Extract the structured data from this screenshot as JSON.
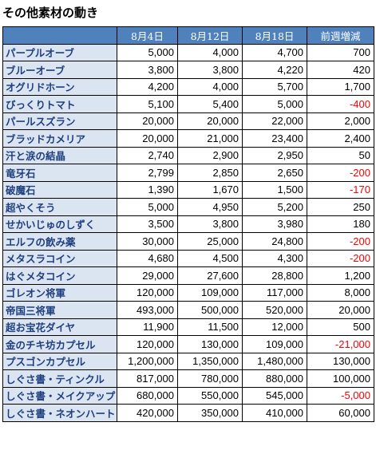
{
  "title": "その他素材の動き",
  "colors": {
    "header_bg": "#4f81bd",
    "name_bg": "#dbe5f1",
    "name_text": "#1f3f7f",
    "negative": "#ff0000"
  },
  "headers": [
    "",
    "8月4日",
    "8月12日",
    "8月18日",
    "前週増減"
  ],
  "rows": [
    {
      "name": "パープルオーブ",
      "v1": "5,000",
      "v2": "4,000",
      "v3": "4,700",
      "diff": "700",
      "neg": false
    },
    {
      "name": "ブルーオーブ",
      "v1": "3,800",
      "v2": "3,800",
      "v3": "4,220",
      "diff": "420",
      "neg": false
    },
    {
      "name": "オグリドホーン",
      "v1": "4,200",
      "v2": "4,000",
      "v3": "5,700",
      "diff": "1,700",
      "neg": false
    },
    {
      "name": "びっくりトマト",
      "v1": "5,100",
      "v2": "5,400",
      "v3": "5,000",
      "diff": "-400",
      "neg": true
    },
    {
      "name": "パールスズラン",
      "v1": "20,000",
      "v2": "20,000",
      "v3": "22,000",
      "diff": "2,000",
      "neg": false
    },
    {
      "name": "ブラッドカメリア",
      "v1": "20,000",
      "v2": "21,000",
      "v3": "23,400",
      "diff": "2,400",
      "neg": false
    },
    {
      "name": "汗と涙の結晶",
      "v1": "2,740",
      "v2": "2,900",
      "v3": "2,950",
      "diff": "50",
      "neg": false
    },
    {
      "name": "竜牙石",
      "v1": "2,799",
      "v2": "2,850",
      "v3": "2,650",
      "diff": "-200",
      "neg": true
    },
    {
      "name": "破魔石",
      "v1": "1,390",
      "v2": "1,670",
      "v3": "1,500",
      "diff": "-170",
      "neg": true
    },
    {
      "name": "超やくそう",
      "v1": "5,000",
      "v2": "4,950",
      "v3": "5,200",
      "diff": "250",
      "neg": false
    },
    {
      "name": "せかいじゅのしずく",
      "v1": "3,500",
      "v2": "3,800",
      "v3": "3,980",
      "diff": "180",
      "neg": false
    },
    {
      "name": "エルフの飲み薬",
      "v1": "30,000",
      "v2": "25,000",
      "v3": "24,800",
      "diff": "-200",
      "neg": true
    },
    {
      "name": "メタスラコイン",
      "v1": "4,680",
      "v2": "4,500",
      "v3": "4,300",
      "diff": "-200",
      "neg": true
    },
    {
      "name": "はぐメタコイン",
      "v1": "29,000",
      "v2": "27,600",
      "v3": "28,800",
      "diff": "1,200",
      "neg": false
    },
    {
      "name": "ゴレオン将軍",
      "v1": "120,000",
      "v2": "109,000",
      "v3": "117,000",
      "diff": "8,000",
      "neg": false
    },
    {
      "name": "帝国三将軍",
      "v1": "493,000",
      "v2": "500,000",
      "v3": "520,000",
      "diff": "20,000",
      "neg": false
    },
    {
      "name": "超お宝花ダイヤ",
      "v1": "11,900",
      "v2": "11,500",
      "v3": "12,000",
      "diff": "500",
      "neg": false
    },
    {
      "name": "金のチキ坊カプセル",
      "v1": "120,000",
      "v2": "130,000",
      "v3": "109,000",
      "diff": "-21,000",
      "neg": true
    },
    {
      "name": "プスゴンカプセル",
      "v1": "1,200,000",
      "v2": "1,350,000",
      "v3": "1,480,000",
      "diff": "130,000",
      "neg": false
    },
    {
      "name": "しぐさ書・ティンクル",
      "v1": "817,000",
      "v2": "780,000",
      "v3": "880,000",
      "diff": "100,000",
      "neg": false
    },
    {
      "name": "しぐさ書・メイクアップ",
      "v1": "680,000",
      "v2": "550,000",
      "v3": "545,000",
      "diff": "-5,000",
      "neg": true
    },
    {
      "name": "しぐさ書・ネオンハート",
      "v1": "420,000",
      "v2": "350,000",
      "v3": "410,000",
      "diff": "60,000",
      "neg": false
    }
  ]
}
